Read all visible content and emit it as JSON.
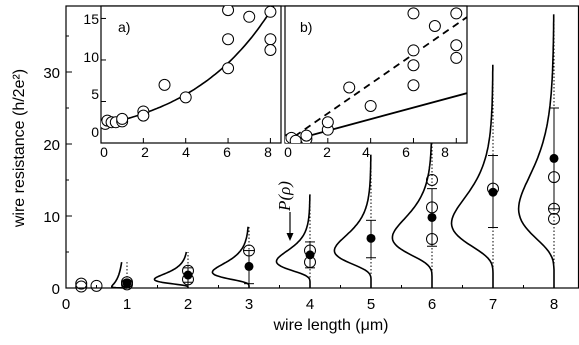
{
  "chart_data": {
    "type": "scatter",
    "xlabel": "wire length (μm)",
    "ylabel": "wire resistance (h/2e²)",
    "xlim": [
      0,
      8.5
    ],
    "ylim": [
      0,
      40
    ],
    "x_ticks": [
      "0",
      "1",
      "2",
      "3",
      "4",
      "5",
      "6",
      "7",
      "8"
    ],
    "y_ticks": [
      "0",
      "10",
      "20",
      "30"
    ],
    "grid": false,
    "annotation": "P(ρ)",
    "open_markers": [
      {
        "x": 0.25,
        "y": 0.2
      },
      {
        "x": 0.25,
        "y": 0.6
      },
      {
        "x": 0.5,
        "y": 0.3
      },
      {
        "x": 1,
        "y": 0.5
      },
      {
        "x": 1,
        "y": 0.8
      },
      {
        "x": 2,
        "y": 1.2
      },
      {
        "x": 2,
        "y": 2.4
      },
      {
        "x": 3,
        "y": 5.2
      },
      {
        "x": 4,
        "y": 3.6
      },
      {
        "x": 4,
        "y": 5.2
      },
      {
        "x": 6,
        "y": 15.0
      },
      {
        "x": 6,
        "y": 11.2
      },
      {
        "x": 6,
        "y": 6.8
      },
      {
        "x": 7,
        "y": 13.8
      },
      {
        "x": 8,
        "y": 15.4
      },
      {
        "x": 8,
        "y": 11.0
      },
      {
        "x": 8,
        "y": 9.6
      }
    ],
    "filled_markers": [
      {
        "x": 1,
        "y": 0.7,
        "err": [
          0.2,
          1.0
        ]
      },
      {
        "x": 2,
        "y": 1.8,
        "err": [
          0.8,
          2.8
        ]
      },
      {
        "x": 3,
        "y": 3.0,
        "err": [
          0.6,
          5.2
        ]
      },
      {
        "x": 4,
        "y": 4.6,
        "err": [
          2.8,
          6.4
        ]
      },
      {
        "x": 5,
        "y": 6.9,
        "err": [
          4.2,
          9.4
        ]
      },
      {
        "x": 6,
        "y": 9.8,
        "err": [
          5.8,
          13.8
        ]
      },
      {
        "x": 7,
        "y": 13.3,
        "err": [
          8.4,
          18.4
        ]
      },
      {
        "x": 8,
        "y": 18.0,
        "err": [
          11.0,
          25.0
        ]
      }
    ],
    "distribution_curves": [
      {
        "x": 1,
        "mode": 0.2,
        "width": 0.4,
        "height": 0.25,
        "top": 3.6
      },
      {
        "x": 2,
        "mode": 1.2,
        "width": 0.7,
        "height": 0.55,
        "top": 5.0
      },
      {
        "x": 3,
        "mode": 2.2,
        "width": 1.1,
        "height": 0.6,
        "top": 8.5
      },
      {
        "x": 4,
        "mode": 3.7,
        "width": 1.4,
        "height": 0.55,
        "top": 13.0
      },
      {
        "x": 5,
        "mode": 5.2,
        "width": 2.0,
        "height": 0.6,
        "top": 18.5
      },
      {
        "x": 6,
        "mode": 7.0,
        "width": 2.6,
        "height": 0.65,
        "top": 24.0
      },
      {
        "x": 7,
        "mode": 9.0,
        "width": 3.4,
        "height": 0.68,
        "top": 31.0
      },
      {
        "x": 8,
        "mode": 11.0,
        "width": 4.4,
        "height": 0.58,
        "top": 38.0
      }
    ],
    "insets": [
      {
        "label": "a)",
        "xlim": [
          0,
          8.5
        ],
        "ylim": [
          0,
          16.5
        ],
        "x_ticks": [
          "0",
          "2",
          "4",
          "6",
          "8"
        ],
        "y_ticks": [
          "0",
          "5",
          "10",
          "15"
        ],
        "points": [
          {
            "x": 0.2,
            "y": 2.3
          },
          {
            "x": 0.3,
            "y": 2.7
          },
          {
            "x": 0.5,
            "y": 2.5
          },
          {
            "x": 0.7,
            "y": 2.5
          },
          {
            "x": 1.0,
            "y": 2.6
          },
          {
            "x": 1.0,
            "y": 2.9
          },
          {
            "x": 2.0,
            "y": 3.8
          },
          {
            "x": 2.0,
            "y": 3.3
          },
          {
            "x": 3.0,
            "y": 7.0
          },
          {
            "x": 4.0,
            "y": 5.5
          },
          {
            "x": 6.0,
            "y": 16.0
          },
          {
            "x": 6.0,
            "y": 12.5
          },
          {
            "x": 6.0,
            "y": 9.0
          },
          {
            "x": 7.0,
            "y": 15.2
          },
          {
            "x": 8.0,
            "y": 15.8
          },
          {
            "x": 8.0,
            "y": 12.5
          },
          {
            "x": 8.0,
            "y": 11.2
          }
        ],
        "fit": {
          "form": "a*exp(b*x)",
          "a": 2.15,
          "b": 0.25,
          "style": "solid"
        }
      },
      {
        "label": "b)",
        "xlim": [
          0,
          8.5
        ],
        "ylim": [
          0,
          18.5
        ],
        "x_ticks": [
          "0",
          "2",
          "4",
          "6",
          "8"
        ],
        "y_ticks": [],
        "points": [
          {
            "x": 0.2,
            "y": 0.5
          },
          {
            "x": 0.3,
            "y": 0.7
          },
          {
            "x": 0.5,
            "y": 0.3
          },
          {
            "x": 1.0,
            "y": 0.5
          },
          {
            "x": 1.0,
            "y": 1.0
          },
          {
            "x": 2.0,
            "y": 1.8
          },
          {
            "x": 2.0,
            "y": 2.8
          },
          {
            "x": 3.0,
            "y": 7.5
          },
          {
            "x": 4.0,
            "y": 5.0
          },
          {
            "x": 6.0,
            "y": 17.5
          },
          {
            "x": 6.0,
            "y": 12.5
          },
          {
            "x": 6.0,
            "y": 10.5
          },
          {
            "x": 6.0,
            "y": 7.8
          },
          {
            "x": 7.0,
            "y": 15.8
          },
          {
            "x": 8.0,
            "y": 17.5
          },
          {
            "x": 8.0,
            "y": 13.2
          },
          {
            "x": 8.0,
            "y": 11.5
          }
        ],
        "lines": [
          {
            "style": "solid",
            "slope": 0.78,
            "intercept": 0.1
          },
          {
            "style": "dashed",
            "slope": 2.0,
            "intercept": 0.0
          }
        ]
      }
    ]
  }
}
